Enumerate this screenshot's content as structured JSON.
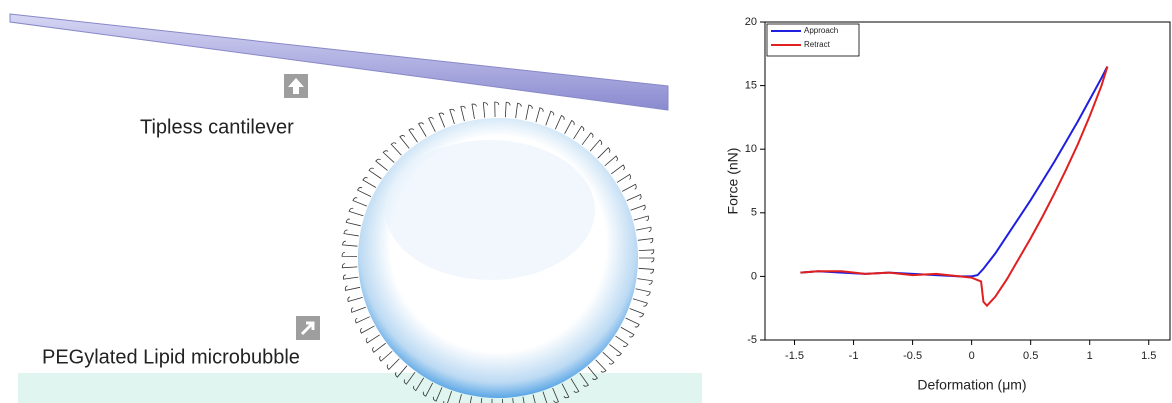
{
  "diagram": {
    "cantilever_label": "Tipless cantilever",
    "bubble_label": "PEGylated Lipid microbubble"
  },
  "chart_data": {
    "type": "line",
    "xlabel": "Deformation (μm)",
    "ylabel": "Force (nN)",
    "xlim": [
      -1.75,
      1.68
    ],
    "ylim": [
      -5,
      20
    ],
    "xticks": [
      -1.5,
      -1.0,
      -0.5,
      0.0,
      0.5,
      1.0,
      1.5
    ],
    "yticks": [
      -5,
      0,
      5,
      10,
      15,
      20
    ],
    "legend": "upper left",
    "series": [
      {
        "name": "Approach",
        "color": "#1f1fe0",
        "x": [
          -1.45,
          -1.3,
          -1.1,
          -0.9,
          -0.7,
          -0.5,
          -0.3,
          -0.1,
          0.0,
          0.05,
          0.1,
          0.2,
          0.3,
          0.4,
          0.5,
          0.6,
          0.7,
          0.8,
          0.9,
          1.0,
          1.1,
          1.15
        ],
        "values": [
          0.3,
          0.4,
          0.3,
          0.2,
          0.3,
          0.2,
          0.1,
          0.0,
          0.0,
          0.1,
          0.6,
          1.8,
          3.2,
          4.6,
          6.0,
          7.5,
          9.0,
          10.6,
          12.2,
          13.9,
          15.6,
          16.5
        ]
      },
      {
        "name": "Retract",
        "color": "#e01f1f",
        "x": [
          -1.45,
          -1.3,
          -1.1,
          -0.9,
          -0.7,
          -0.5,
          -0.3,
          -0.1,
          0.0,
          0.08,
          0.1,
          0.13,
          0.2,
          0.3,
          0.4,
          0.5,
          0.6,
          0.7,
          0.8,
          0.9,
          1.0,
          1.1,
          1.15
        ],
        "values": [
          0.3,
          0.4,
          0.4,
          0.2,
          0.3,
          0.1,
          0.2,
          0.0,
          -0.1,
          -0.4,
          -2.0,
          -2.3,
          -1.6,
          -0.2,
          1.4,
          3.0,
          4.7,
          6.5,
          8.4,
          10.4,
          12.6,
          15.0,
          16.5
        ]
      }
    ]
  }
}
